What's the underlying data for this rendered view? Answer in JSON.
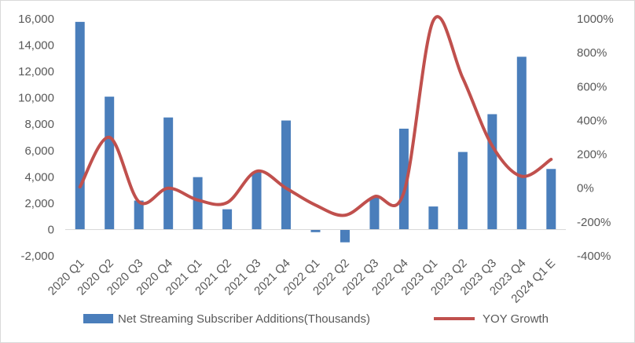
{
  "chart_data": {
    "type": "bar+line",
    "title": "",
    "categories": [
      "2020 Q1",
      "2020 Q2",
      "2020 Q3",
      "2020 Q4",
      "2021 Q1",
      "2021 Q2",
      "2021 Q3",
      "2021 Q4",
      "2022 Q1",
      "2022 Q2",
      "2022 Q3",
      "2022 Q4",
      "2023 Q1",
      "2023 Q2",
      "2023 Q3",
      "2023 Q4",
      "2024 Q1 E"
    ],
    "series": [
      {
        "name": "Net Streaming Subscriber Additions(Thousands)",
        "type": "bar",
        "axis": "left",
        "color": "#4a7ebb",
        "values": [
          15770,
          10090,
          2200,
          8510,
          3980,
          1540,
          4380,
          8280,
          -200,
          -970,
          2410,
          7660,
          1750,
          5890,
          8760,
          13120,
          4600
        ]
      },
      {
        "name": "YOY Growth",
        "type": "line",
        "axis": "right",
        "color": "#c0504d",
        "values": [
          0.07,
          3.0,
          -0.8,
          0.0,
          -0.7,
          -0.85,
          1.0,
          0.0,
          -1.0,
          -1.6,
          -0.5,
          -0.25,
          9.9,
          6.5,
          2.5,
          0.7,
          1.7
        ]
      }
    ],
    "y_left": {
      "ylim": [
        -2000,
        16000
      ],
      "ticks": [
        -2000,
        0,
        2000,
        4000,
        6000,
        8000,
        10000,
        12000,
        14000,
        16000
      ],
      "tick_labels": [
        "-2,000",
        "0",
        "2,000",
        "4,000",
        "6,000",
        "8,000",
        "10,000",
        "12,000",
        "14,000",
        "16,000"
      ]
    },
    "y_right": {
      "ylim": [
        -4,
        10
      ],
      "ticks": [
        -4,
        -2,
        0,
        2,
        4,
        6,
        8,
        10
      ],
      "tick_labels": [
        "-400%",
        "-200%",
        "0%",
        "200%",
        "400%",
        "600%",
        "800%",
        "1000%"
      ]
    },
    "grid": false,
    "legend": {
      "placement": "bottom",
      "entries": [
        "Net Streaming Subscriber Additions(Thousands)",
        "YOY Growth"
      ]
    }
  }
}
